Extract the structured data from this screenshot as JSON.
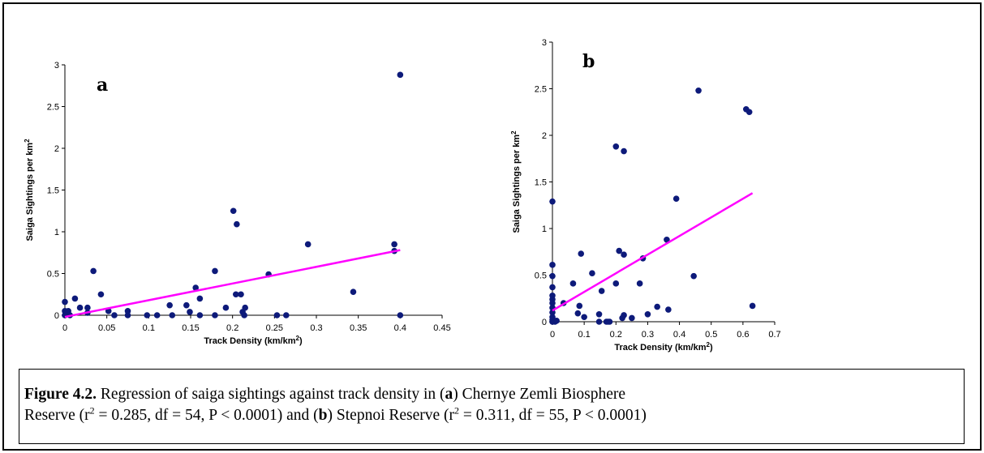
{
  "chart_data": [
    {
      "type": "scatter",
      "panel_label": "a",
      "xlabel": [
        {
          "text": "Track Density (km/km"
        },
        {
          "text": "2",
          "sup": true
        },
        {
          "text": ")"
        }
      ],
      "ylabel": [
        {
          "text": "Saiga Sightings per km"
        },
        {
          "text": "2",
          "sup": true
        }
      ],
      "xlim": [
        0,
        0.45
      ],
      "xticks": [
        0,
        0.05,
        0.1,
        0.15,
        0.2,
        0.25,
        0.3,
        0.35,
        0.4,
        0.45
      ],
      "ylim": [
        0,
        3
      ],
      "yticks": [
        0,
        0.5,
        1,
        1.5,
        2,
        2.5,
        3
      ],
      "color": "#0d1a7a",
      "x": [
        0,
        0,
        0,
        0.002,
        0.004,
        0.006,
        0.012,
        0.018,
        0.027,
        0.027,
        0.034,
        0.043,
        0.052,
        0.059,
        0.075,
        0.075,
        0.098,
        0.11,
        0.125,
        0.128,
        0.145,
        0.149,
        0.156,
        0.161,
        0.161,
        0.179,
        0.179,
        0.192,
        0.201,
        0.205,
        0.204,
        0.21,
        0.212,
        0.215,
        0.214,
        0.243,
        0.253,
        0.264,
        0.29,
        0.344,
        0.393,
        0.393,
        0.4,
        0.4
      ],
      "values": [
        0.16,
        0.05,
        0,
        0.03,
        0.05,
        0,
        0.2,
        0.09,
        0.09,
        0.03,
        0.53,
        0.25,
        0.05,
        0,
        0,
        0.05,
        0,
        0,
        0.12,
        0,
        0.12,
        0.04,
        0.33,
        0.2,
        0,
        0.53,
        0,
        0.09,
        1.25,
        1.09,
        0.25,
        0.25,
        0.04,
        0.09,
        0,
        0.49,
        0,
        0,
        0.85,
        0.28,
        0.85,
        0.77,
        2.88,
        0
      ],
      "trendline": {
        "x": [
          0,
          0.4
        ],
        "values": [
          -0.02,
          0.78
        ],
        "color": "#ff00ff"
      }
    },
    {
      "type": "scatter",
      "panel_label": "b",
      "xlabel": [
        {
          "text": "Track Density (km/km"
        },
        {
          "text": "2",
          "sup": true
        },
        {
          "text": ")"
        }
      ],
      "ylabel": [
        {
          "text": "Saiga Sightings per km"
        },
        {
          "text": "2",
          "sup": true
        }
      ],
      "xlim": [
        0,
        0.7
      ],
      "xticks": [
        0,
        0.1,
        0.2,
        0.3,
        0.4,
        0.5,
        0.6,
        0.7
      ],
      "ylim": [
        0,
        3
      ],
      "yticks": [
        0,
        0.5,
        1,
        1.5,
        2,
        2.5,
        3
      ],
      "color": "#0d1a7a",
      "x": [
        0,
        0,
        0,
        0,
        0,
        0,
        0,
        0,
        0,
        0,
        0,
        0,
        0.008,
        0.013,
        0.035,
        0.065,
        0.08,
        0.085,
        0.09,
        0.1,
        0.125,
        0.155,
        0.147,
        0.147,
        0.17,
        0.175,
        0.18,
        0.2,
        0.2,
        0.21,
        0.225,
        0.225,
        0.225,
        0.22,
        0.25,
        0.275,
        0.285,
        0.3,
        0.33,
        0.36,
        0.365,
        0.39,
        0.445,
        0.46,
        0.61,
        0.62,
        0.63
      ],
      "values": [
        1.29,
        0.61,
        0.49,
        0.37,
        0.28,
        0.24,
        0.2,
        0.15,
        0.1,
        0.05,
        0.02,
        0,
        0,
        0.01,
        0.2,
        0.41,
        0.09,
        0.17,
        0.73,
        0.05,
        0.52,
        0.33,
        0.08,
        0,
        0,
        0,
        0,
        0.41,
        1.88,
        0.76,
        1.83,
        0.72,
        0.07,
        0.04,
        0.04,
        0.41,
        0.68,
        0.08,
        0.16,
        0.88,
        0.13,
        1.32,
        0.49,
        2.48,
        2.28,
        2.25,
        0.17
      ],
      "trendline": {
        "x": [
          0,
          0.63
        ],
        "values": [
          0.12,
          1.38
        ],
        "color": "#ff00ff"
      }
    }
  ],
  "caption": {
    "lines": [
      [
        {
          "text": "Figure 4.2.",
          "bold": true
        },
        {
          "text": " Regression of saiga sightings against track density in ("
        },
        {
          "text": "a",
          "bold": true
        },
        {
          "text": ") Chernye Zemli Biosphere"
        }
      ],
      [
        {
          "text": "Reserve (r"
        },
        {
          "text": "2",
          "sup": true
        },
        {
          "text": " = 0.285, df = 54, P < 0.0001) and ("
        },
        {
          "text": "b",
          "bold": true
        },
        {
          "text": ") Stepnoi Reserve (r"
        },
        {
          "text": "2",
          "sup": true
        },
        {
          "text": " = 0.311, df = 55, P < 0.0001)"
        }
      ]
    ]
  }
}
